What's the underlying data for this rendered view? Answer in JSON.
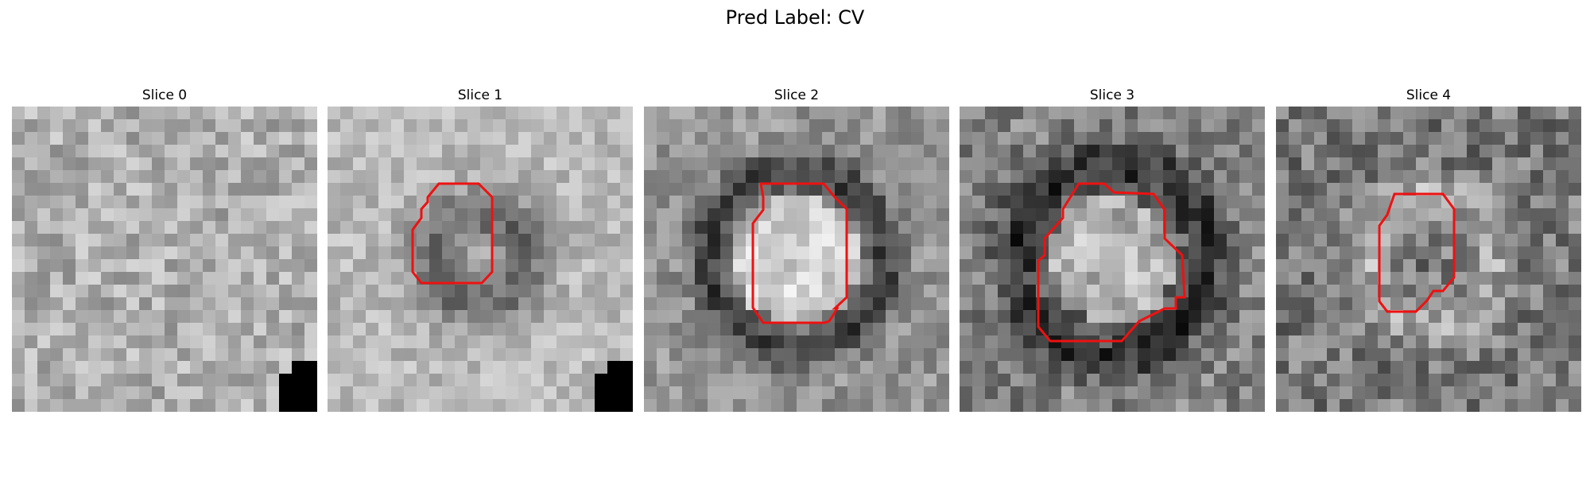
{
  "figure": {
    "title": "Pred Label: CV",
    "contour_color": "#ee1111"
  },
  "panels": [
    {
      "title": "Slice 0",
      "tone": "mid-grey noise",
      "has_contour": false,
      "dark_corner_block": true
    },
    {
      "title": "Slice 1",
      "tone": "grey noise with dark ring",
      "has_contour": true,
      "dark_corner_block": true
    },
    {
      "title": "Slice 2",
      "tone": "bright center with dark rim",
      "has_contour": true,
      "dark_corner_block": false
    },
    {
      "title": "Slice 3",
      "tone": "bright center dark surround",
      "has_contour": true,
      "dark_corner_block": false
    },
    {
      "title": "Slice 4",
      "tone": "dark speckled with ring",
      "has_contour": true,
      "dark_corner_block": false
    }
  ]
}
